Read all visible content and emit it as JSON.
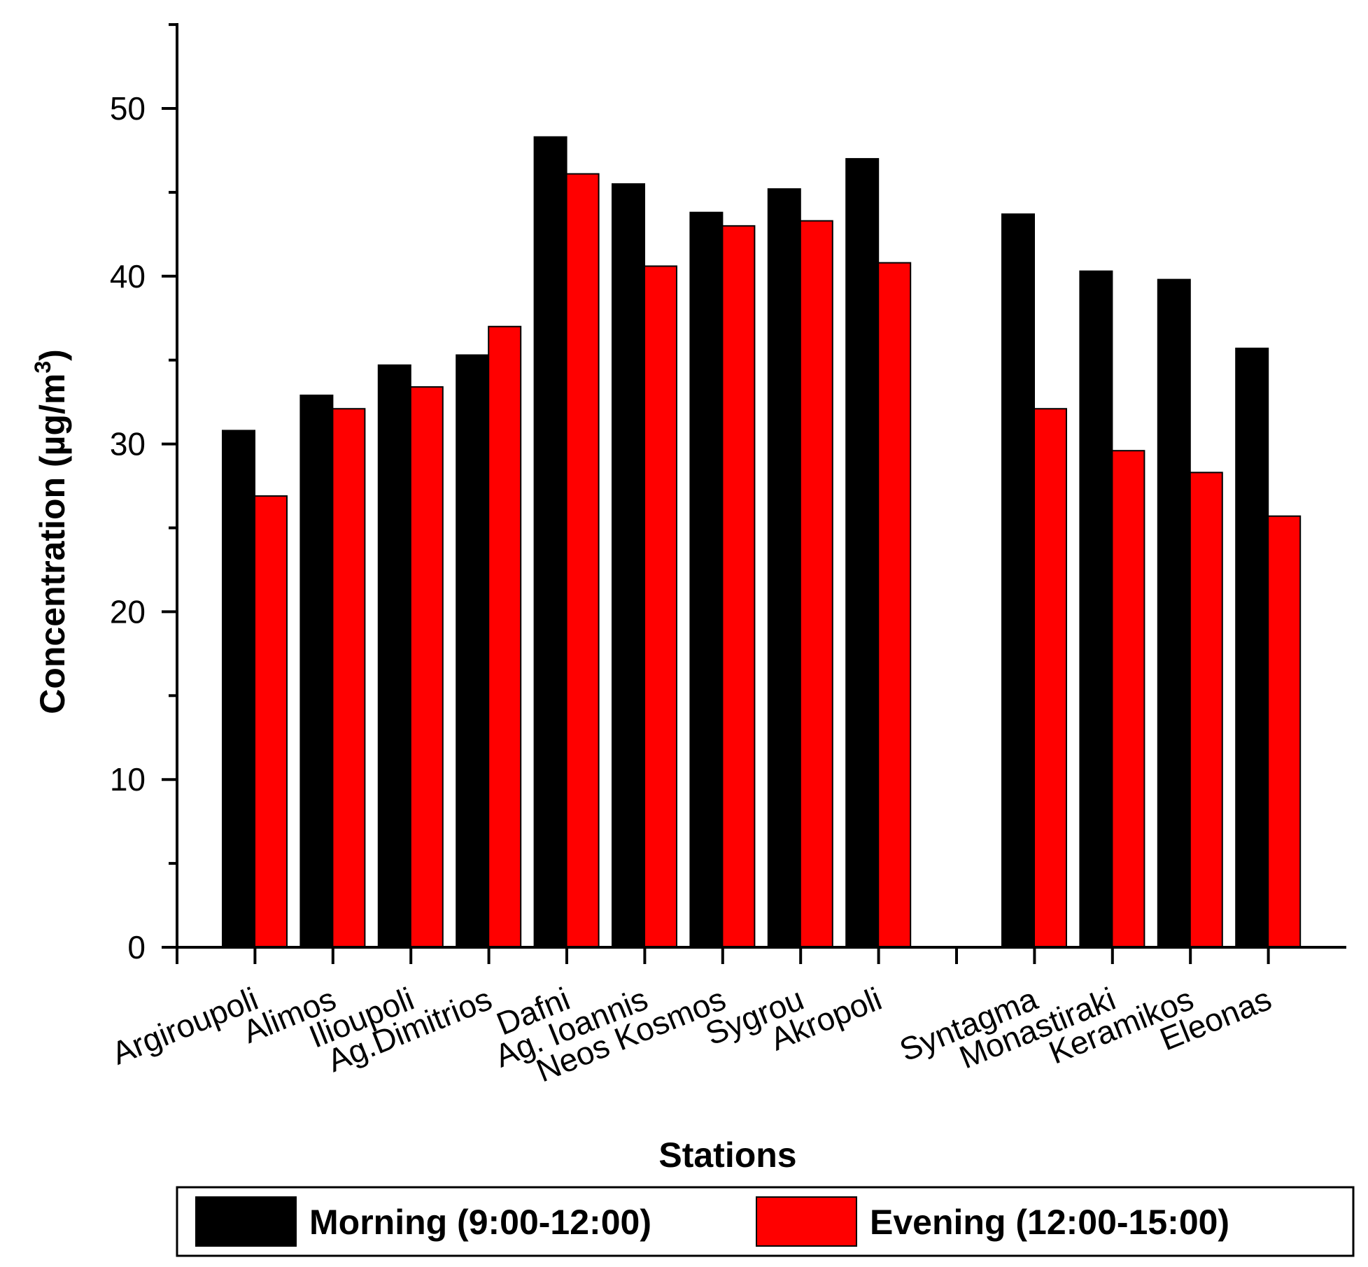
{
  "chart_data": {
    "type": "bar",
    "title": "",
    "xlabel": "Stations",
    "ylabel_main": "Concentration (µg/m",
    "ylabel_sup": "3",
    "ylabel_close": ")",
    "ylim": [
      0,
      55
    ],
    "yticks": [
      0,
      10,
      20,
      30,
      40,
      50
    ],
    "categories": [
      "Argiroupoli",
      "Alimos",
      "Ilioupoli",
      "Ag.Dimitrios",
      "Dafni",
      "Ag. Ioannis",
      "Neos Kosmos",
      "Sygrou",
      "Akropoli",
      "",
      "Syntagma",
      "Monastiraki",
      "Keramikos",
      "Eleonas"
    ],
    "series": [
      {
        "name": "Morning (9:00-12:00)",
        "color": "#000000",
        "values": [
          30.8,
          32.9,
          34.7,
          35.3,
          48.3,
          45.5,
          43.8,
          45.2,
          47.0,
          null,
          43.7,
          40.3,
          39.8,
          35.7
        ]
      },
      {
        "name": "Evening (12:00-15:00)",
        "color": "#ff0000",
        "values": [
          26.9,
          32.1,
          33.4,
          37.0,
          46.1,
          40.6,
          43.0,
          43.3,
          40.8,
          null,
          32.1,
          29.6,
          28.3,
          25.7
        ]
      }
    ],
    "legend_position": "bottom"
  }
}
